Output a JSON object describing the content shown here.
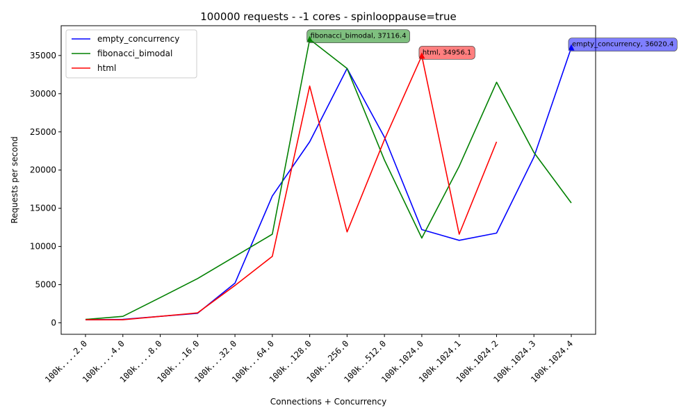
{
  "chart_data": {
    "type": "line",
    "title": "100000 requests - -1 cores - spinlooppause=true",
    "xlabel": "Connections + Concurrency",
    "ylabel": "Requests per second",
    "categories": [
      "100k....2.0",
      "100k....4.0",
      "100k....8.0",
      "100k...16.0",
      "100k...32.0",
      "100k...64.0",
      "100k..128.0",
      "100k..256.0",
      "100k..512.0",
      "100k.1024.0",
      "100k.1024.1",
      "100k.1024.2",
      "100k.1024.3",
      "100k.1024.4"
    ],
    "ylim": [
      -1500,
      38900
    ],
    "yticks": [
      0,
      5000,
      10000,
      15000,
      20000,
      25000,
      30000,
      35000
    ],
    "legend_position": "top-left",
    "grid": false,
    "series": [
      {
        "name": "empty_concurrency",
        "color": "#0000ff",
        "values": [
          400,
          450,
          850,
          1250,
          5200,
          16600,
          23700,
          33300,
          24300,
          12200,
          10800,
          11750,
          21700,
          36020.4
        ]
      },
      {
        "name": "fibonacci_bimodal",
        "color": "#008000",
        "values": [
          450,
          850,
          3300,
          5800,
          8700,
          11600,
          37116.4,
          33300,
          21300,
          11100,
          20500,
          31500,
          22300,
          15700
        ]
      },
      {
        "name": "html",
        "color": "#ff0000",
        "values": [
          400,
          400,
          850,
          1300,
          4900,
          8700,
          31000,
          11900,
          24000,
          34956.1,
          11600,
          23700,
          null,
          null
        ]
      }
    ],
    "annotations": [
      {
        "series": "fibonacci_bimodal",
        "index": 6,
        "text": "fibonacci_bimodal, 37116.4",
        "color": "#008000"
      },
      {
        "series": "html",
        "index": 9,
        "text": "html, 34956.1",
        "color": "#ff0000"
      },
      {
        "series": "empty_concurrency",
        "index": 13,
        "text": "empty_concurrency, 36020.4",
        "color": "#0000ff"
      }
    ]
  }
}
